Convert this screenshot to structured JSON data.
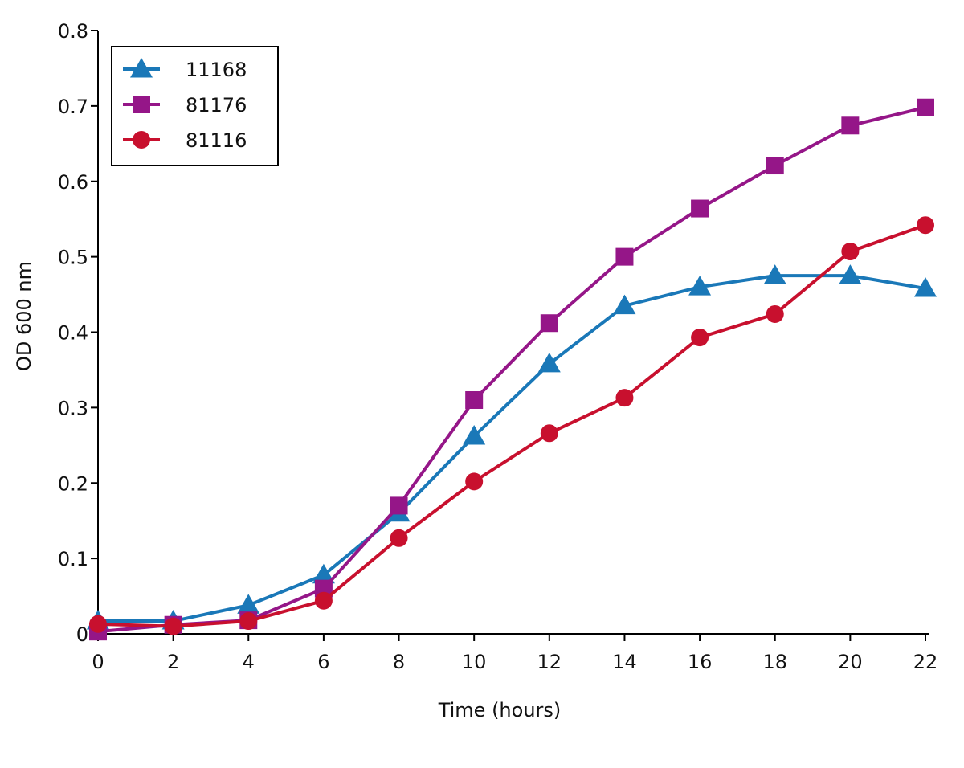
{
  "chart_data": {
    "type": "line",
    "title": "",
    "xlabel": "Time (hours)",
    "ylabel": "OD 600 nm",
    "x": [
      0,
      2,
      4,
      6,
      8,
      10,
      12,
      14,
      16,
      18,
      20,
      22
    ],
    "xticks": [
      "0",
      "2",
      "4",
      "6",
      "8",
      "10",
      "12",
      "14",
      "16",
      "18",
      "20",
      "22"
    ],
    "yticks": [
      "0",
      "0.1",
      "0.2",
      "0.3",
      "0.4",
      "0.5",
      "0.6",
      "0.7",
      "0.8"
    ],
    "xlim": [
      0,
      22
    ],
    "ylim": [
      0,
      0.8
    ],
    "grid": false,
    "legend": "top-left",
    "series": [
      {
        "name": "11168",
        "marker": "triangle",
        "color": "#1a78b8",
        "values": [
          0.017,
          0.017,
          0.038,
          0.078,
          0.16,
          0.262,
          0.358,
          0.435,
          0.46,
          0.475,
          0.475,
          0.458
        ]
      },
      {
        "name": "81176",
        "marker": "square",
        "color": "#951688",
        "values": [
          0.003,
          0.012,
          0.018,
          0.06,
          0.17,
          0.31,
          0.412,
          0.5,
          0.564,
          0.621,
          0.674,
          0.698
        ]
      },
      {
        "name": "81116",
        "marker": "circle",
        "color": "#c8102e",
        "values": [
          0.013,
          0.01,
          0.017,
          0.044,
          0.127,
          0.202,
          0.266,
          0.313,
          0.393,
          0.424,
          0.507,
          0.542
        ]
      }
    ]
  }
}
